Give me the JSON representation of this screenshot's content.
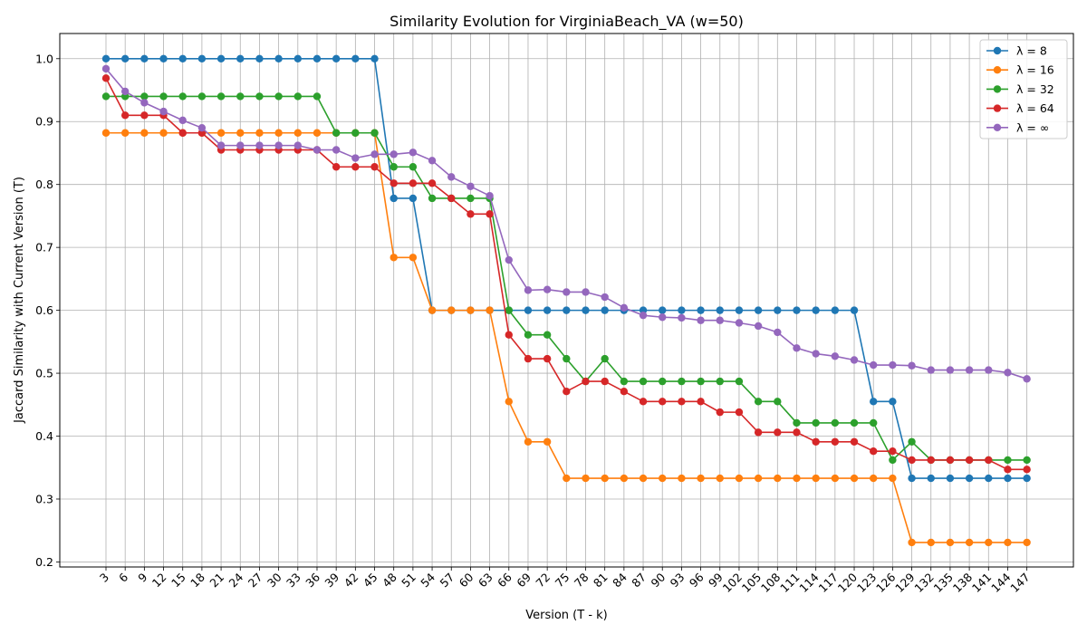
{
  "chart_data": {
    "type": "line",
    "title": "Similarity Evolution for VirginiaBeach_VA (w=50)",
    "xlabel": "Version (T - k)",
    "ylabel": "Jaccard Similarity with Current Version (T)",
    "ylim": [
      0.2,
      1.0
    ],
    "yticks": [
      0.2,
      0.3,
      0.4,
      0.5,
      0.6,
      0.7,
      0.8,
      0.9,
      1.0
    ],
    "grid": true,
    "legend_position": "top-right",
    "categories": [
      "3",
      "6",
      "9",
      "12",
      "15",
      "18",
      "21",
      "24",
      "27",
      "30",
      "33",
      "36",
      "39",
      "42",
      "45",
      "48",
      "51",
      "54",
      "57",
      "60",
      "63",
      "66",
      "69",
      "72",
      "75",
      "78",
      "81",
      "84",
      "87",
      "90",
      "93",
      "96",
      "99",
      "102",
      "105",
      "108",
      "111",
      "114",
      "117",
      "120",
      "123",
      "126",
      "129",
      "132",
      "135",
      "138",
      "141",
      "144",
      "147"
    ],
    "series": [
      {
        "name": "λ = 8",
        "color": "#1f77b4",
        "values": [
          1.0,
          1.0,
          1.0,
          1.0,
          1.0,
          1.0,
          1.0,
          1.0,
          1.0,
          1.0,
          1.0,
          1.0,
          1.0,
          1.0,
          1.0,
          0.778,
          0.778,
          0.6,
          0.6,
          0.6,
          0.6,
          0.6,
          0.6,
          0.6,
          0.6,
          0.6,
          0.6,
          0.6,
          0.6,
          0.6,
          0.6,
          0.6,
          0.6,
          0.6,
          0.6,
          0.6,
          0.6,
          0.6,
          0.6,
          0.6,
          0.455,
          0.455,
          0.333,
          0.333,
          0.333,
          0.333,
          0.333,
          0.333,
          0.333
        ]
      },
      {
        "name": "λ = 16",
        "color": "#ff7f0e",
        "values": [
          0.882,
          0.882,
          0.882,
          0.882,
          0.882,
          0.882,
          0.882,
          0.882,
          0.882,
          0.882,
          0.882,
          0.882,
          0.882,
          0.882,
          0.882,
          0.684,
          0.684,
          0.6,
          0.6,
          0.6,
          0.6,
          0.455,
          0.391,
          0.391,
          0.333,
          0.333,
          0.333,
          0.333,
          0.333,
          0.333,
          0.333,
          0.333,
          0.333,
          0.333,
          0.333,
          0.333,
          0.333,
          0.333,
          0.333,
          0.333,
          0.333,
          0.333,
          0.231,
          0.231,
          0.231,
          0.231,
          0.231,
          0.231,
          0.231
        ]
      },
      {
        "name": "λ = 32",
        "color": "#2ca02c",
        "values": [
          0.94,
          0.94,
          0.94,
          0.94,
          0.94,
          0.94,
          0.94,
          0.94,
          0.94,
          0.94,
          0.94,
          0.94,
          0.882,
          0.882,
          0.882,
          0.828,
          0.828,
          0.778,
          0.778,
          0.778,
          0.778,
          0.6,
          0.561,
          0.561,
          0.523,
          0.487,
          0.523,
          0.487,
          0.487,
          0.487,
          0.487,
          0.487,
          0.487,
          0.487,
          0.455,
          0.455,
          0.421,
          0.421,
          0.421,
          0.421,
          0.421,
          0.362,
          0.391,
          0.362,
          0.362,
          0.362,
          0.362,
          0.362,
          0.362
        ]
      },
      {
        "name": "λ = 64",
        "color": "#d62728",
        "values": [
          0.969,
          0.91,
          0.91,
          0.91,
          0.882,
          0.882,
          0.855,
          0.855,
          0.855,
          0.855,
          0.855,
          0.855,
          0.828,
          0.828,
          0.828,
          0.802,
          0.802,
          0.802,
          0.778,
          0.753,
          0.753,
          0.561,
          0.523,
          0.523,
          0.471,
          0.487,
          0.487,
          0.471,
          0.455,
          0.455,
          0.455,
          0.455,
          0.438,
          0.438,
          0.406,
          0.406,
          0.406,
          0.391,
          0.391,
          0.391,
          0.376,
          0.376,
          0.362,
          0.362,
          0.362,
          0.362,
          0.362,
          0.347,
          0.347
        ]
      },
      {
        "name": "λ = ∞",
        "color": "#9467bd",
        "values": [
          0.984,
          0.948,
          0.93,
          0.916,
          0.902,
          0.89,
          0.862,
          0.862,
          0.862,
          0.862,
          0.862,
          0.855,
          0.855,
          0.842,
          0.848,
          0.848,
          0.851,
          0.838,
          0.812,
          0.797,
          0.782,
          0.68,
          0.632,
          0.633,
          0.629,
          0.629,
          0.621,
          0.604,
          0.592,
          0.589,
          0.588,
          0.584,
          0.584,
          0.58,
          0.575,
          0.565,
          0.54,
          0.531,
          0.527,
          0.521,
          0.513,
          0.513,
          0.512,
          0.505,
          0.505,
          0.505,
          0.505,
          0.501,
          0.491
        ]
      }
    ]
  }
}
